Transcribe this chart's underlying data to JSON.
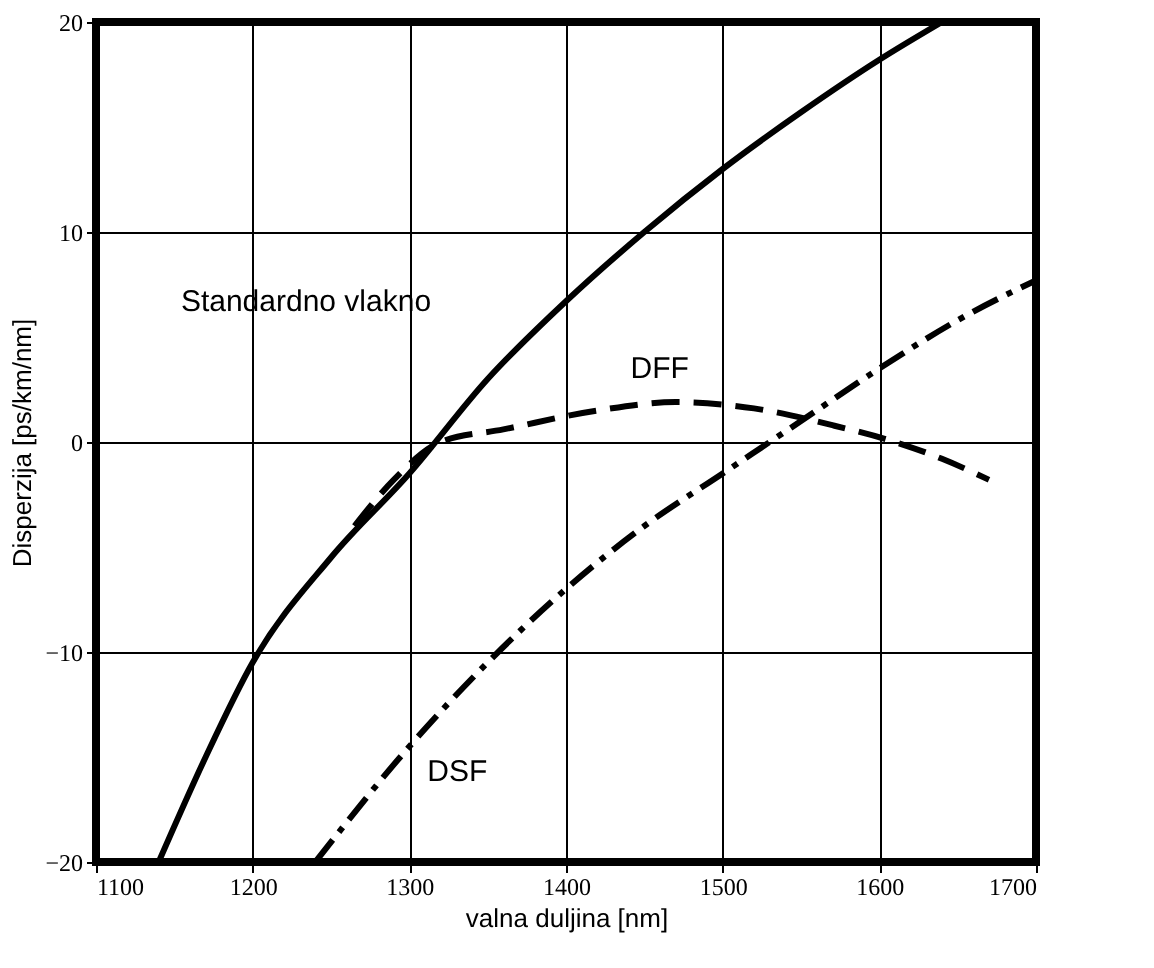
{
  "chart_data": {
    "type": "line",
    "xlabel": "valna duljina [nm]",
    "ylabel": "Disperzija [ps/km/nm]",
    "xlim": [
      1100,
      1700
    ],
    "xticks": [
      1100,
      1200,
      1300,
      1400,
      1500,
      1600,
      1700
    ],
    "ylim": [
      -20,
      20
    ],
    "yticks": [
      -20,
      -10,
      0,
      10,
      20
    ],
    "grid": true,
    "series": [
      {
        "name": "Standardno vlakno",
        "color": "#000000",
        "line_style": "solid",
        "x": [
          1140,
          1170,
          1200,
          1250,
          1300,
          1350,
          1400,
          1450,
          1500,
          1550,
          1600,
          1640
        ],
        "values": [
          -20,
          -15,
          -10.5,
          -5.5,
          -1.5,
          3,
          6.7,
          10,
          13,
          15.7,
          18.2,
          20
        ]
      },
      {
        "name": "DFF",
        "color": "#000000",
        "line_style": "dashed",
        "x": [
          1265,
          1290,
          1320,
          1360,
          1420,
          1470,
          1520,
          1570,
          1610,
          1640,
          1670
        ],
        "values": [
          -4,
          -1.8,
          0,
          0.6,
          1.5,
          1.9,
          1.6,
          0.8,
          0,
          -0.8,
          -1.8
        ]
      },
      {
        "name": "DSF",
        "color": "#000000",
        "line_style": "dashdot",
        "x": [
          1240,
          1300,
          1350,
          1400,
          1450,
          1500,
          1550,
          1600,
          1650,
          1700
        ],
        "values": [
          -20,
          -14.5,
          -10.5,
          -7,
          -4,
          -1.5,
          1,
          3.5,
          5.8,
          7.7
        ]
      }
    ]
  }
}
